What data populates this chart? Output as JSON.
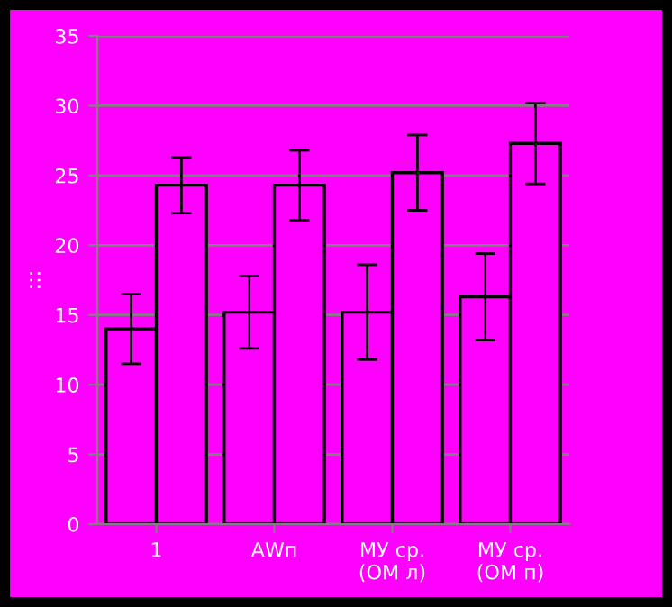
{
  "chart_data": {
    "type": "bar",
    "ylabel": ":::",
    "categories": [
      "1",
      "АWп",
      "МУ ср.\n(ОМ л)",
      "МУ ср.\n(ОМ п)"
    ],
    "series": [
      {
        "color": "#ff00ff",
        "values": [
          14,
          15.2,
          15.2,
          16.3
        ],
        "errors": [
          2.5,
          2.6,
          3.4,
          3.1
        ]
      },
      {
        "color": "#ff00ff",
        "values": [
          24.3,
          24.3,
          25.2,
          27.3
        ],
        "errors": [
          2,
          2.5,
          2.7,
          2.9
        ]
      }
    ],
    "ylim": [
      0,
      35
    ],
    "yticks": [
      0,
      5,
      10,
      15,
      20,
      25,
      30,
      35
    ],
    "grid": "y",
    "legend": false
  }
}
